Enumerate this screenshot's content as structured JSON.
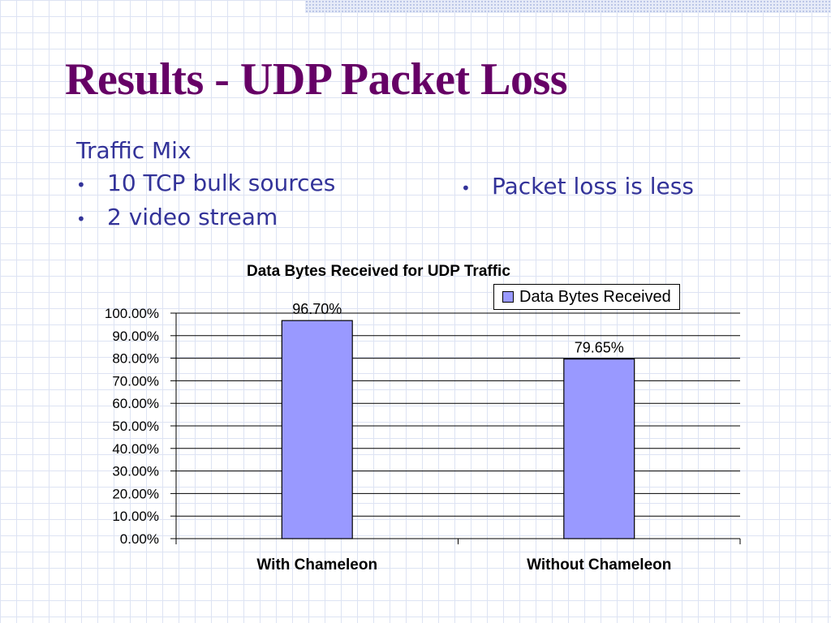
{
  "slide": {
    "title": "Results - UDP Packet Loss",
    "traffic_heading": "Traffic Mix",
    "traffic_items": [
      "10 TCP bulk sources",
      "2 video stream"
    ],
    "observations": [
      "Packet loss is less"
    ],
    "bullet_char": "•"
  },
  "colors": {
    "title": "#660066",
    "body_text": "#333399",
    "bar_fill": "#9999ff"
  },
  "chart_data": {
    "type": "bar",
    "title": "Data Bytes Received for UDP Traffic",
    "categories": [
      "With Chameleon",
      "Without Chameleon"
    ],
    "series": [
      {
        "name": "Data Bytes Received",
        "values": [
          96.7,
          79.65
        ]
      }
    ],
    "data_labels": [
      "96.70%",
      "79.65%"
    ],
    "ylim": [
      0,
      100
    ],
    "yticks": [
      0,
      10,
      20,
      30,
      40,
      50,
      60,
      70,
      80,
      90,
      100
    ],
    "ytick_labels": [
      "0.00%",
      "10.00%",
      "20.00%",
      "30.00%",
      "40.00%",
      "50.00%",
      "60.00%",
      "70.00%",
      "80.00%",
      "90.00%",
      "100.00%"
    ],
    "grid": true,
    "legend": "top-right"
  }
}
